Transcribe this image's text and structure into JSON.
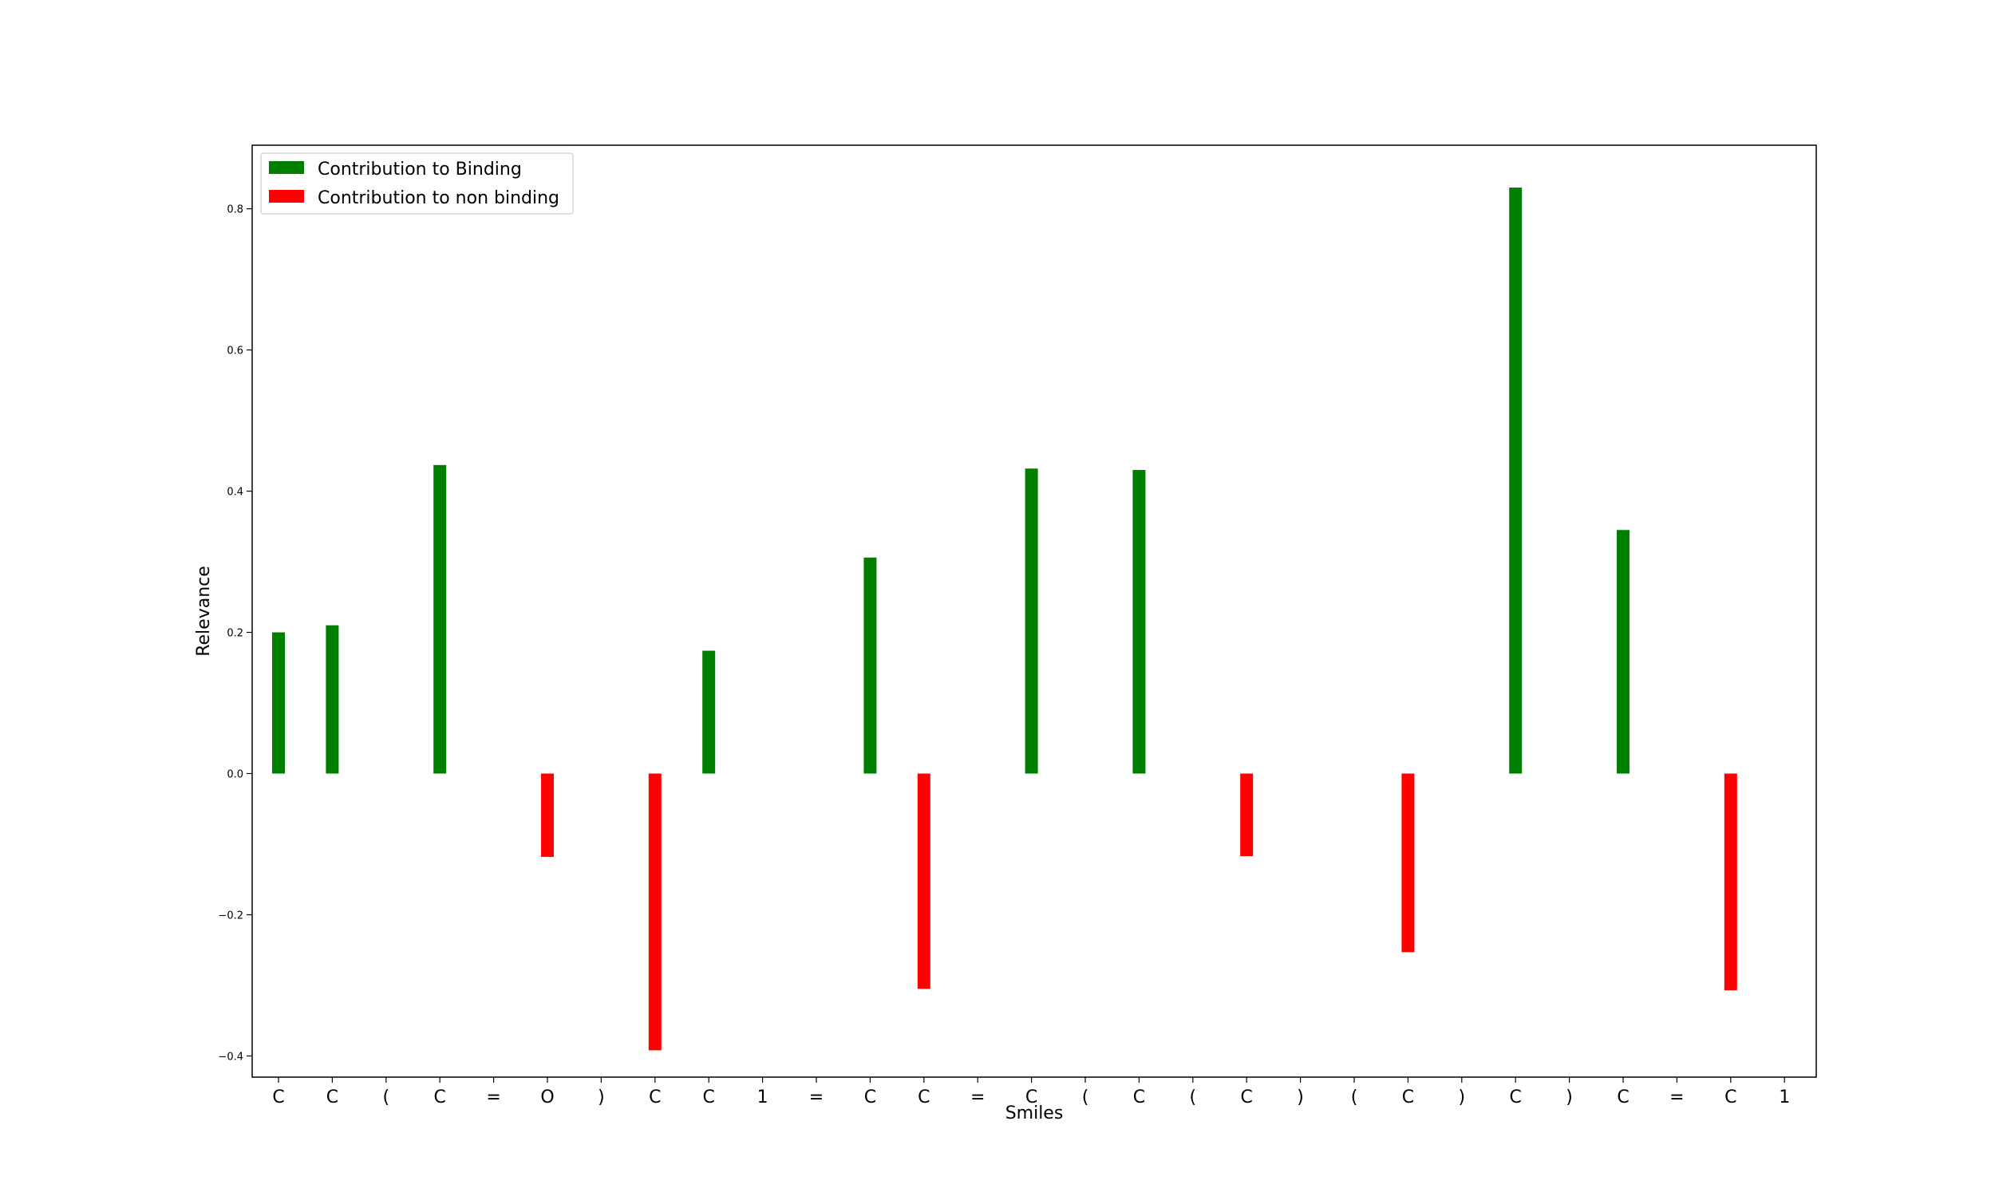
{
  "chart_data": {
    "type": "bar",
    "xlabel": "Smiles",
    "ylabel": "Relevance",
    "ylim": [
      -0.43,
      0.89
    ],
    "yticks": [
      -0.4,
      -0.2,
      0.0,
      0.2,
      0.4,
      0.6,
      0.8
    ],
    "ytick_labels": [
      "−0.4",
      "−0.2",
      "0.0",
      "0.2",
      "0.4",
      "0.6",
      "0.8"
    ],
    "grid": false,
    "legend_position": "top-left",
    "categories": [
      "C",
      "C",
      "(",
      "C",
      "=",
      "O",
      ")",
      "C",
      "C",
      "1",
      "=",
      "C",
      "C",
      "=",
      "C",
      "(",
      "C",
      "(",
      "C",
      ")",
      "(",
      "C",
      ")",
      "C",
      ")",
      "C",
      "=",
      "C",
      "1"
    ],
    "series": [
      {
        "name": "Contribution to Binding",
        "color": "#008000",
        "values": [
          0.2,
          0.21,
          null,
          0.437,
          null,
          null,
          null,
          null,
          0.174,
          null,
          null,
          0.306,
          null,
          null,
          0.432,
          null,
          0.43,
          null,
          null,
          null,
          null,
          null,
          null,
          0.83,
          null,
          0.345,
          null,
          null,
          null
        ]
      },
      {
        "name": "Contribution to non binding",
        "color": "#ff0000",
        "values": [
          null,
          null,
          null,
          null,
          null,
          -0.118,
          null,
          -0.392,
          null,
          null,
          null,
          null,
          -0.305,
          null,
          null,
          null,
          null,
          null,
          -0.117,
          null,
          null,
          -0.253,
          null,
          null,
          null,
          null,
          null,
          -0.307,
          null
        ]
      }
    ]
  }
}
